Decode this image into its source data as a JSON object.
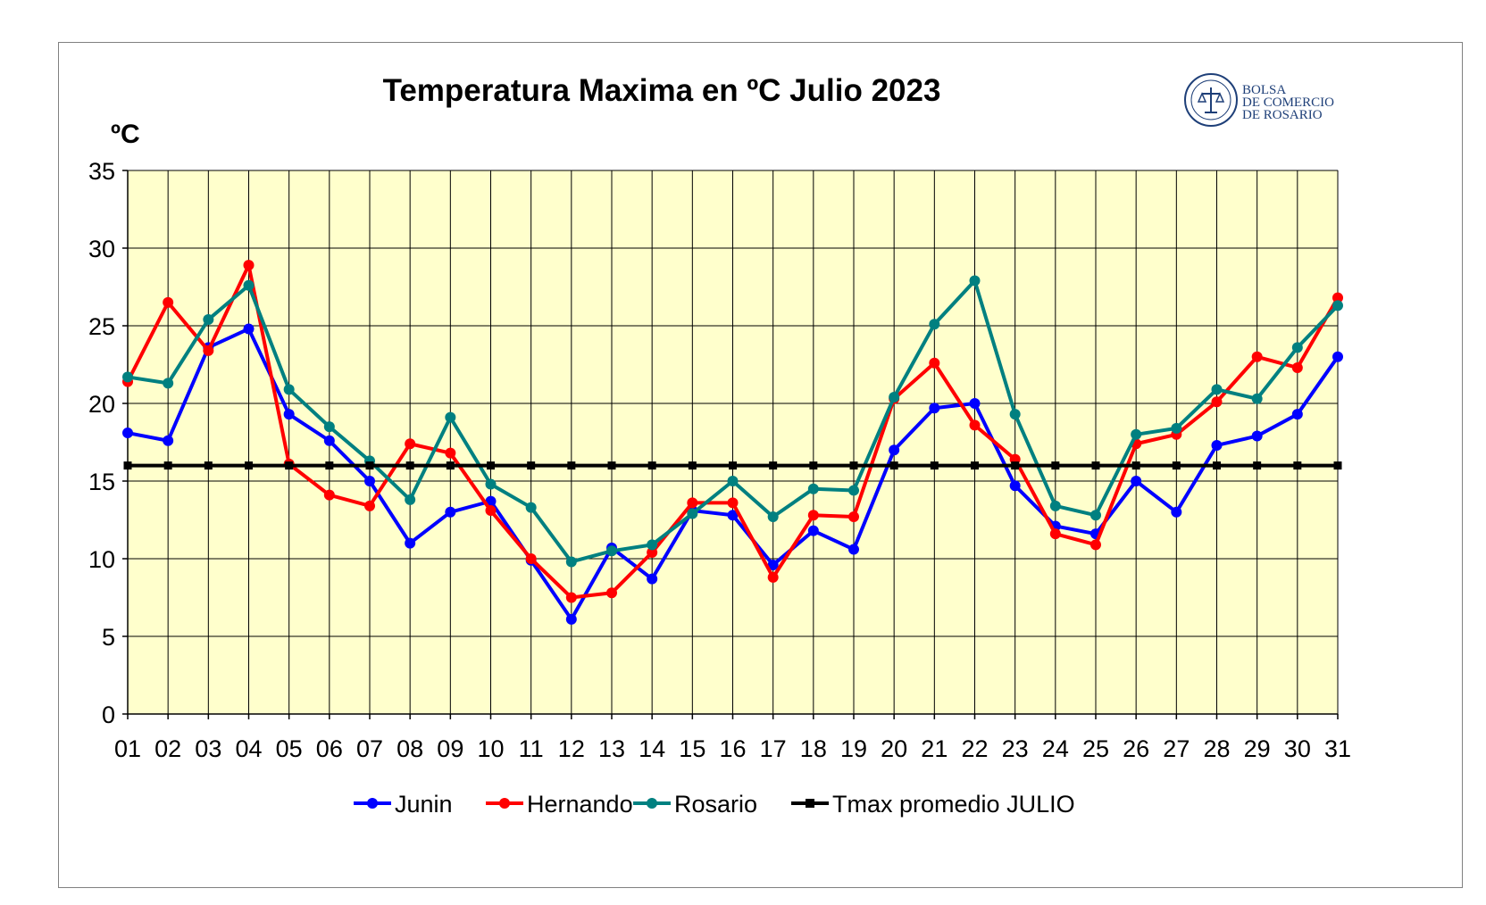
{
  "logo": {
    "lines": [
      "BOLSA",
      "DE COMERCIO",
      "DE ROSARIO"
    ],
    "color": "#1e3f78"
  },
  "chart_data": {
    "type": "line",
    "title": "Temperatura Maxima en ºC Julio 2023",
    "ylabel": "ºC",
    "xlabel": "",
    "ylim": [
      0,
      35
    ],
    "yticks": [
      0,
      5,
      10,
      15,
      20,
      25,
      30,
      35
    ],
    "grid": true,
    "legend_position": "bottom",
    "plot_background": "#ffffcc",
    "categories": [
      "01",
      "02",
      "03",
      "04",
      "05",
      "06",
      "07",
      "08",
      "09",
      "10",
      "11",
      "12",
      "13",
      "14",
      "15",
      "16",
      "17",
      "18",
      "19",
      "20",
      "21",
      "22",
      "23",
      "24",
      "25",
      "26",
      "27",
      "28",
      "29",
      "30",
      "31"
    ],
    "series": [
      {
        "name": "Junin",
        "color": "#0000ff",
        "values": [
          18.1,
          17.6,
          23.6,
          24.8,
          19.3,
          17.6,
          15.0,
          11.0,
          13.0,
          13.7,
          9.9,
          6.1,
          10.7,
          8.7,
          13.1,
          12.8,
          9.6,
          11.8,
          10.6,
          17.0,
          19.7,
          20.0,
          14.7,
          12.1,
          11.6,
          15.0,
          13.0,
          17.3,
          17.9,
          19.3,
          23.0
        ]
      },
      {
        "name": "Hernando",
        "color": "#ff0000",
        "values": [
          21.4,
          26.5,
          23.4,
          28.9,
          16.1,
          14.1,
          13.4,
          17.4,
          16.8,
          13.1,
          10.0,
          7.5,
          7.8,
          10.4,
          13.6,
          13.6,
          8.8,
          12.8,
          12.7,
          20.3,
          22.6,
          18.6,
          16.4,
          11.6,
          10.9,
          17.4,
          18.0,
          20.1,
          23.0,
          22.3,
          26.8
        ]
      },
      {
        "name": "Rosario",
        "color": "#008080",
        "values": [
          21.7,
          21.3,
          25.4,
          27.6,
          20.9,
          18.5,
          16.3,
          13.8,
          19.1,
          14.8,
          13.3,
          9.8,
          10.5,
          10.9,
          12.9,
          15.0,
          12.7,
          14.5,
          14.4,
          20.4,
          25.1,
          27.9,
          19.3,
          13.4,
          12.8,
          18.0,
          18.4,
          20.9,
          20.3,
          23.6,
          26.3
        ]
      },
      {
        "name": "Tmax promedio JULIO",
        "color": "#000000",
        "values": [
          16,
          16,
          16,
          16,
          16,
          16,
          16,
          16,
          16,
          16,
          16,
          16,
          16,
          16,
          16,
          16,
          16,
          16,
          16,
          16,
          16,
          16,
          16,
          16,
          16,
          16,
          16,
          16,
          16,
          16,
          16
        ]
      }
    ]
  }
}
